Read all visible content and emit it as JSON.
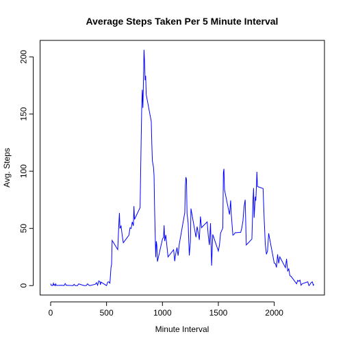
{
  "chart_data": {
    "type": "line",
    "title": "Average Steps Taken Per 5 Minute Interval",
    "x_label": "Minute Interval",
    "y_label": "Avg. Steps",
    "x": [
      0,
      5,
      10,
      15,
      20,
      25,
      30,
      35,
      40,
      45,
      50,
      55,
      100,
      110,
      120,
      130,
      140,
      150,
      200,
      210,
      220,
      230,
      240,
      250,
      300,
      310,
      320,
      330,
      340,
      350,
      400,
      410,
      420,
      430,
      440,
      445,
      450,
      500,
      510,
      520,
      530,
      540,
      545,
      550,
      600,
      610,
      615,
      620,
      630,
      640,
      650,
      700,
      710,
      720,
      730,
      740,
      745,
      750,
      800,
      810,
      815,
      820,
      825,
      830,
      835,
      840,
      845,
      850,
      855,
      900,
      905,
      910,
      920,
      925,
      930,
      935,
      940,
      945,
      950,
      955,
      1000,
      1010,
      1015,
      1020,
      1030,
      1040,
      1050,
      1100,
      1110,
      1115,
      1120,
      1130,
      1140,
      1150,
      1200,
      1205,
      1210,
      1215,
      1220,
      1230,
      1240,
      1250,
      1255,
      1300,
      1310,
      1320,
      1330,
      1340,
      1350,
      1400,
      1410,
      1420,
      1430,
      1440,
      1450,
      1500,
      1510,
      1520,
      1530,
      1540,
      1545,
      1550,
      1555,
      1600,
      1610,
      1615,
      1620,
      1630,
      1640,
      1650,
      1700,
      1710,
      1720,
      1730,
      1740,
      1750,
      1800,
      1810,
      1815,
      1820,
      1825,
      1830,
      1835,
      1840,
      1845,
      1850,
      1900,
      1910,
      1920,
      1930,
      1940,
      1950,
      2000,
      2010,
      2020,
      2030,
      2040,
      2050,
      2100,
      2110,
      2120,
      2130,
      2140,
      2150,
      2200,
      2210,
      2220,
      2230,
      2240,
      2250,
      2300,
      2310,
      2320,
      2330,
      2340,
      2350,
      2355
    ],
    "series": [
      {
        "name": "Avg. Steps",
        "color": "#0000ff",
        "values": [
          1.7,
          0.3,
          0.1,
          0.2,
          0.1,
          2.1,
          0.5,
          0.9,
          0,
          1.5,
          0.3,
          0.1,
          0.3,
          0.2,
          0,
          1.8,
          0.2,
          0.3,
          0,
          1.1,
          0,
          0,
          0,
          1.5,
          0,
          0,
          0.2,
          1.6,
          0.5,
          0,
          1.2,
          2.6,
          0.3,
          4.1,
          3.5,
          0.8,
          3.1,
          0,
          3.0,
          3.3,
          2.1,
          16,
          18.3,
          39.5,
          31.5,
          53.8,
          63.5,
          50,
          52.1,
          44,
          37.5,
          44,
          50.5,
          49.9,
          55.7,
          52.3,
          69.5,
          57.9,
          68.2,
          129.4,
          157.5,
          171.2,
          155.4,
          177.3,
          206.2,
          195.9,
          179.6,
          183.4,
          167,
          143.5,
          124,
          109.1,
          103.5,
          96,
          66.2,
          45.2,
          24.8,
          38.8,
          35,
          21,
          40.6,
          42.4,
          52.7,
          38.9,
          44.3,
          34.6,
          25.1,
          31.4,
          21.3,
          25.5,
          28.4,
          33.3,
          26.2,
          35.9,
          63.9,
          87.6,
          94.8,
          92.8,
          63.4,
          54.5,
          26.3,
          38.2,
          67.3,
          42.3,
          51.6,
          46.2,
          40,
          60.4,
          50.7,
          55.7,
          43.6,
          35.5,
          54.6,
          17.4,
          44.7,
          30.2,
          35.5,
          45.9,
          48.1,
          50.3,
          98.7,
          102.1,
          83.9,
          62.1,
          74.5,
          63.2,
          56.9,
          44.1,
          44.7,
          46.2,
          46.6,
          50.5,
          56.5,
          68.9,
          75.1,
          35.5,
          40.7,
          74.7,
          85.3,
          59.3,
          67.8,
          77.7,
          74.2,
          85.3,
          99.5,
          86.6,
          84.9,
          58,
          36.1,
          27.4,
          30.2,
          45.7,
          19.6,
          19.3,
          15.9,
          27.3,
          19.5,
          25.1,
          15.7,
          23.4,
          12.8,
          14.7,
          8.7,
          8.1,
          1.6,
          4.6,
          3.7,
          4.8,
          0.3,
          1.6,
          3.3,
          0,
          1,
          2.6,
          3.3,
          0.2,
          1.1
        ]
      }
    ],
    "xlim": [
      -94.2,
      2449.2
    ],
    "ylim": [
      -8.25,
      214.4
    ],
    "xticks": [
      0,
      500,
      1000,
      1500,
      2000
    ],
    "yticks": [
      0,
      50,
      100,
      150,
      200
    ]
  }
}
